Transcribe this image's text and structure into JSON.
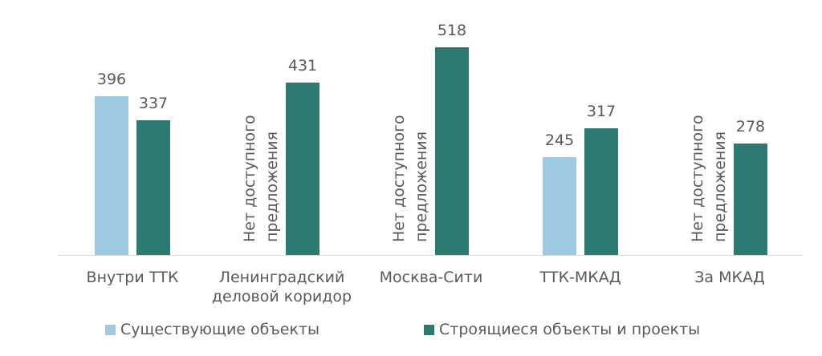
{
  "chart_data": {
    "type": "bar",
    "categories": [
      "Внутри ТТК",
      "Ленинградский деловой коридор",
      "Москва-Сити",
      "ТТК-МКАД",
      "За МКАД"
    ],
    "series": [
      {
        "name": "Существующие объекты",
        "color": "#9dcae0",
        "values": [
          396,
          null,
          null,
          245,
          null
        ]
      },
      {
        "name": "Строящиеся объекты и проекты",
        "color": "#2d7a72",
        "values": [
          337,
          431,
          518,
          317,
          278
        ]
      }
    ],
    "no_data_label": "Нет доступного предложения",
    "legend": "bottom"
  }
}
